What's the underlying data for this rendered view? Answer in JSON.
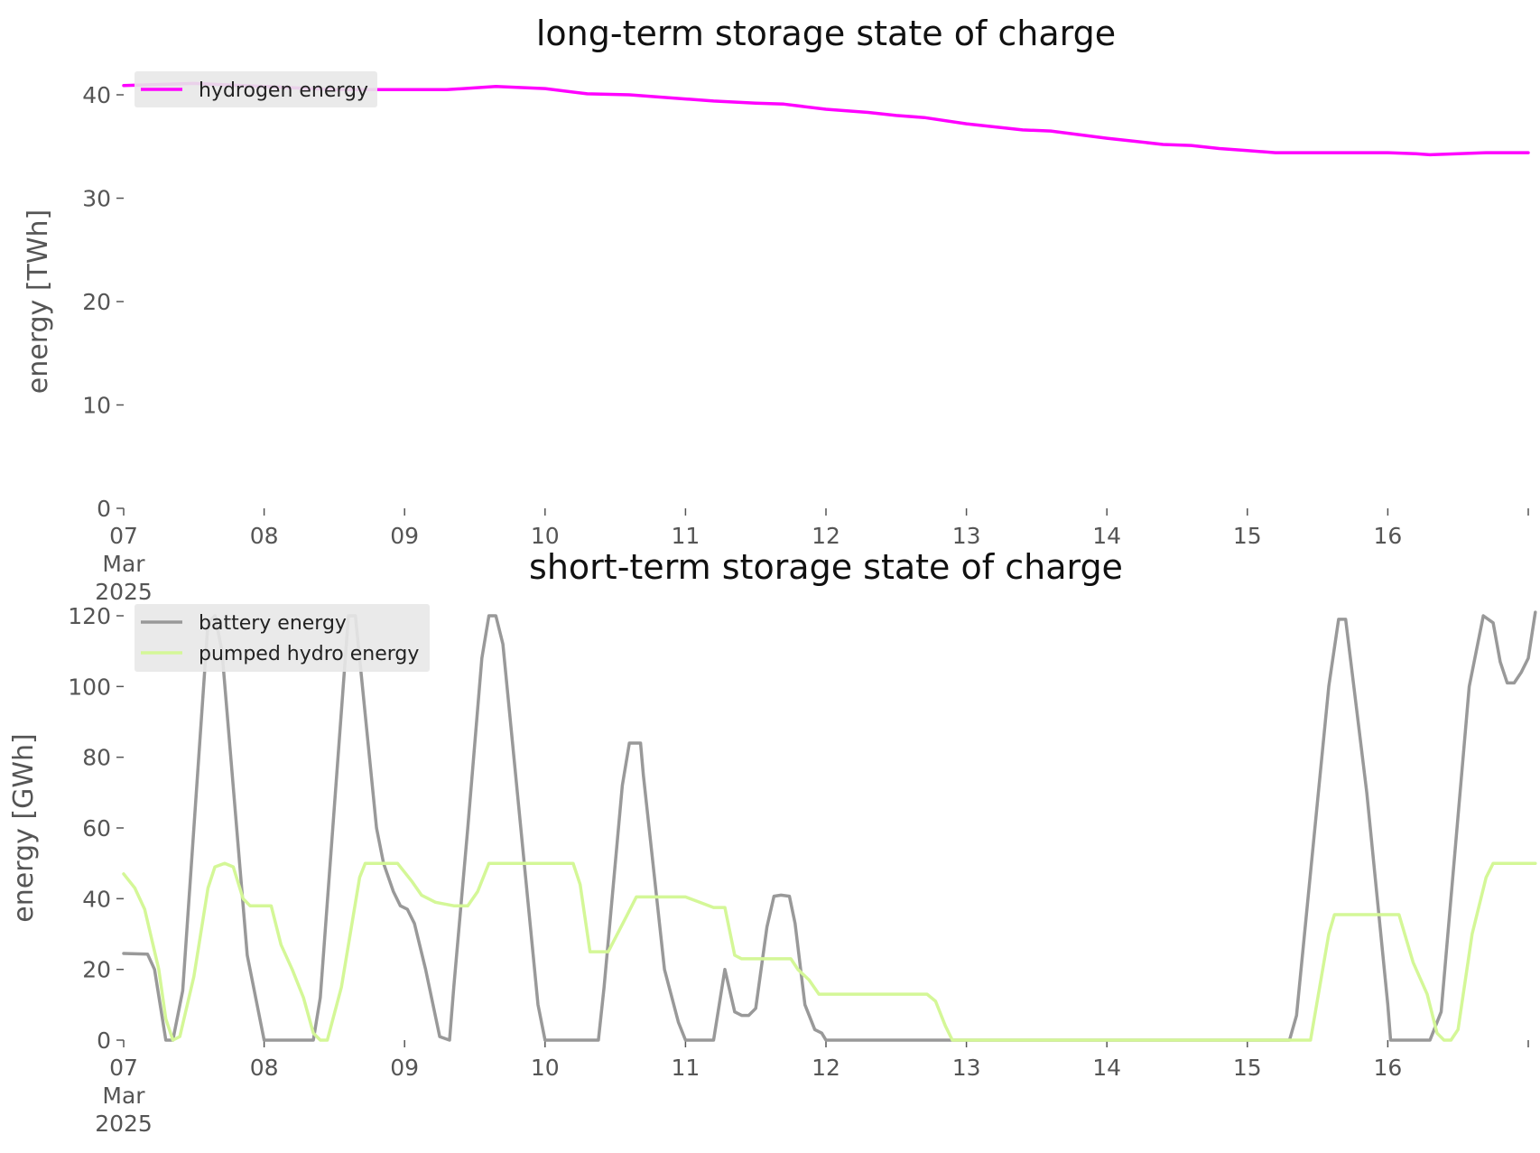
{
  "figure": {
    "colors": {
      "hydrogen": "#ff00ff",
      "battery": "#999999",
      "pumped_hydro": "#d4f797",
      "legend_bg": "#e8e8e8",
      "tick": "#555555"
    }
  },
  "chart_data": [
    {
      "type": "line",
      "title": "long-term storage state of charge",
      "xlabel": "",
      "ylabel": "energy [TWh]",
      "x_unit": "days, March 2025",
      "xlim": [
        7,
        17
      ],
      "ylim": [
        0,
        40
      ],
      "y_ticks": [
        "0",
        "10",
        "20",
        "30",
        "40"
      ],
      "x_ticks": [
        "07",
        "08",
        "09",
        "10",
        "11",
        "12",
        "13",
        "14",
        "15",
        "16"
      ],
      "x_tick_sub": [
        "Mar",
        "2025"
      ],
      "grid": false,
      "legend": "top-left",
      "series": [
        {
          "name": "hydrogen energy",
          "color": "#ff00ff",
          "points": [
            [
              7,
              40.9
            ],
            [
              7.5,
              41.1
            ],
            [
              8.0,
              40.8
            ],
            [
              8.5,
              40.5
            ],
            [
              9.0,
              40.5
            ],
            [
              9.3,
              40.5
            ],
            [
              9.65,
              40.8
            ],
            [
              10.0,
              40.6
            ],
            [
              10.3,
              40.1
            ],
            [
              10.6,
              40.0
            ],
            [
              11.0,
              39.6
            ],
            [
              11.2,
              39.4
            ],
            [
              11.5,
              39.2
            ],
            [
              11.7,
              39.1
            ],
            [
              12.0,
              38.6
            ],
            [
              12.3,
              38.3
            ],
            [
              12.5,
              38.0
            ],
            [
              12.7,
              37.8
            ],
            [
              13.0,
              37.2
            ],
            [
              13.2,
              36.9
            ],
            [
              13.4,
              36.6
            ],
            [
              13.6,
              36.5
            ],
            [
              14.0,
              35.8
            ],
            [
              14.2,
              35.5
            ],
            [
              14.4,
              35.2
            ],
            [
              14.6,
              35.1
            ],
            [
              14.8,
              34.8
            ],
            [
              15.0,
              34.6
            ],
            [
              15.2,
              34.4
            ],
            [
              15.5,
              34.4
            ],
            [
              15.8,
              34.4
            ],
            [
              16.0,
              34.4
            ],
            [
              16.2,
              34.3
            ],
            [
              16.3,
              34.2
            ],
            [
              16.5,
              34.3
            ],
            [
              16.7,
              34.4
            ],
            [
              17.0,
              34.4
            ]
          ]
        }
      ]
    },
    {
      "type": "line",
      "title": "short-term storage state of charge",
      "xlabel": "",
      "ylabel": "energy [GWh]",
      "x_unit": "days, March 2025",
      "xlim": [
        7,
        17
      ],
      "ylim": [
        0,
        120
      ],
      "y_ticks": [
        "0",
        "20",
        "40",
        "60",
        "80",
        "100",
        "120"
      ],
      "x_ticks": [
        "07",
        "08",
        "09",
        "10",
        "11",
        "12",
        "13",
        "14",
        "15",
        "16"
      ],
      "x_tick_sub": [
        "Mar",
        "2025"
      ],
      "grid": false,
      "legend": "top-left",
      "series": [
        {
          "name": "battery energy",
          "color": "#999999",
          "points": [
            [
              7,
              24.5
            ],
            [
              7.17,
              24.3
            ],
            [
              7.22,
              20
            ],
            [
              7.3,
              0
            ],
            [
              7.35,
              0
            ],
            [
              7.42,
              14
            ],
            [
              7.6,
              118
            ],
            [
              7.65,
              120
            ],
            [
              7.7,
              110
            ],
            [
              7.88,
              24
            ],
            [
              7.95,
              10
            ],
            [
              8.0,
              0
            ],
            [
              8.3,
              0
            ],
            [
              8.35,
              0
            ],
            [
              8.4,
              12
            ],
            [
              8.6,
              120
            ],
            [
              8.65,
              120
            ],
            [
              8.7,
              100
            ],
            [
              8.8,
              60
            ],
            [
              8.85,
              50
            ],
            [
              8.92,
              42
            ],
            [
              8.97,
              38
            ],
            [
              9.02,
              37
            ],
            [
              9.07,
              33
            ],
            [
              9.15,
              20
            ],
            [
              9.25,
              1
            ],
            [
              9.32,
              0
            ],
            [
              9.35,
              15
            ],
            [
              9.45,
              60
            ],
            [
              9.55,
              108
            ],
            [
              9.6,
              120
            ],
            [
              9.65,
              120
            ],
            [
              9.7,
              112
            ],
            [
              9.95,
              10
            ],
            [
              10.0,
              0
            ],
            [
              10.2,
              0
            ],
            [
              10.38,
              0
            ],
            [
              10.42,
              15
            ],
            [
              10.55,
              72
            ],
            [
              10.6,
              84
            ],
            [
              10.68,
              84
            ],
            [
              10.7,
              75
            ],
            [
              10.85,
              20
            ],
            [
              10.95,
              5
            ],
            [
              11.0,
              0
            ],
            [
              11.2,
              0
            ],
            [
              11.28,
              20
            ],
            [
              11.35,
              8
            ],
            [
              11.4,
              7
            ],
            [
              11.45,
              7
            ],
            [
              11.5,
              9
            ],
            [
              11.58,
              32
            ],
            [
              11.63,
              40.7
            ],
            [
              11.68,
              41
            ],
            [
              11.74,
              40.7
            ],
            [
              11.78,
              33
            ],
            [
              11.85,
              10
            ],
            [
              11.92,
              3
            ],
            [
              11.97,
              2
            ],
            [
              12.0,
              0
            ],
            [
              13.0,
              0
            ],
            [
              14.0,
              0
            ],
            [
              15.0,
              0
            ],
            [
              15.3,
              0
            ],
            [
              15.35,
              7
            ],
            [
              15.58,
              100
            ],
            [
              15.65,
              119
            ],
            [
              15.7,
              119
            ],
            [
              15.85,
              70
            ],
            [
              16.0,
              10
            ],
            [
              16.02,
              0
            ],
            [
              16.2,
              0
            ],
            [
              16.3,
              0
            ],
            [
              16.38,
              8
            ],
            [
              16.58,
              100
            ],
            [
              16.68,
              120
            ],
            [
              16.75,
              118
            ],
            [
              16.8,
              107
            ],
            [
              16.85,
              101
            ],
            [
              16.9,
              101
            ],
            [
              16.95,
              104
            ],
            [
              17.0,
              108
            ],
            [
              17.05,
              121
            ]
          ]
        },
        {
          "name": "pumped hydro energy",
          "color": "#d4f797",
          "points": [
            [
              7,
              47
            ],
            [
              7.08,
              43
            ],
            [
              7.15,
              37
            ],
            [
              7.25,
              20
            ],
            [
              7.3,
              6
            ],
            [
              7.35,
              0
            ],
            [
              7.4,
              1
            ],
            [
              7.5,
              18
            ],
            [
              7.6,
              43
            ],
            [
              7.65,
              49
            ],
            [
              7.72,
              50
            ],
            [
              7.78,
              49
            ],
            [
              7.85,
              40
            ],
            [
              7.9,
              38
            ],
            [
              8.0,
              38
            ],
            [
              8.05,
              38
            ],
            [
              8.12,
              27
            ],
            [
              8.2,
              20
            ],
            [
              8.28,
              12
            ],
            [
              8.35,
              2
            ],
            [
              8.4,
              0
            ],
            [
              8.45,
              0
            ],
            [
              8.55,
              15
            ],
            [
              8.68,
              46
            ],
            [
              8.72,
              50
            ],
            [
              8.8,
              50
            ],
            [
              8.95,
              50
            ],
            [
              9.05,
              45
            ],
            [
              9.12,
              41
            ],
            [
              9.22,
              39
            ],
            [
              9.35,
              38
            ],
            [
              9.45,
              38
            ],
            [
              9.52,
              42
            ],
            [
              9.6,
              50
            ],
            [
              10.2,
              50
            ],
            [
              10.25,
              44
            ],
            [
              10.32,
              25
            ],
            [
              10.45,
              25
            ],
            [
              10.58,
              35
            ],
            [
              10.65,
              40.5
            ],
            [
              11.0,
              40.5
            ],
            [
              11.1,
              39
            ],
            [
              11.2,
              37.5
            ],
            [
              11.28,
              37.5
            ],
            [
              11.35,
              24
            ],
            [
              11.4,
              23
            ],
            [
              11.75,
              23
            ],
            [
              11.8,
              20
            ],
            [
              11.88,
              17
            ],
            [
              11.95,
              13
            ],
            [
              12.72,
              13
            ],
            [
              12.78,
              11
            ],
            [
              12.85,
              4
            ],
            [
              12.9,
              0
            ],
            [
              13.0,
              0
            ],
            [
              14.0,
              0
            ],
            [
              15.0,
              0
            ],
            [
              15.4,
              0
            ],
            [
              15.45,
              0
            ],
            [
              15.58,
              30
            ],
            [
              15.62,
              35.5
            ],
            [
              16.0,
              35.5
            ],
            [
              16.08,
              35.5
            ],
            [
              16.18,
              22
            ],
            [
              16.28,
              13
            ],
            [
              16.35,
              2
            ],
            [
              16.4,
              0
            ],
            [
              16.45,
              0
            ],
            [
              16.5,
              3
            ],
            [
              16.6,
              30
            ],
            [
              16.7,
              46
            ],
            [
              16.75,
              50
            ],
            [
              17.05,
              50
            ]
          ]
        }
      ]
    }
  ]
}
